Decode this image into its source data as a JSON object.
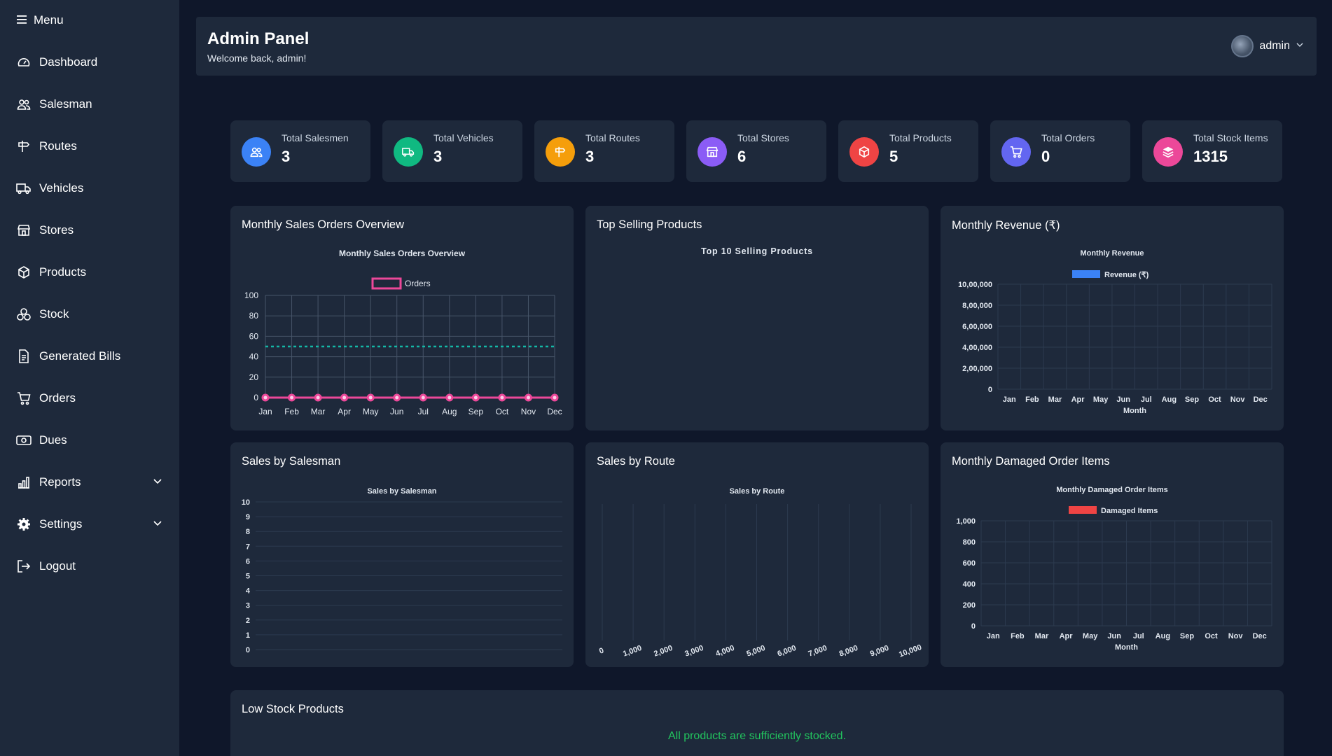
{
  "sidebar": {
    "menu_label": "Menu",
    "items": [
      {
        "label": "Dashboard",
        "icon": "gauge-icon"
      },
      {
        "label": "Salesman",
        "icon": "users-icon"
      },
      {
        "label": "Routes",
        "icon": "signpost-icon"
      },
      {
        "label": "Vehicles",
        "icon": "truck-icon"
      },
      {
        "label": "Stores",
        "icon": "store-icon"
      },
      {
        "label": "Products",
        "icon": "box-icon"
      },
      {
        "label": "Stock",
        "icon": "boxes-icon"
      },
      {
        "label": "Generated Bills",
        "icon": "file-icon"
      },
      {
        "label": "Orders",
        "icon": "cart-icon"
      },
      {
        "label": "Dues",
        "icon": "money-icon"
      },
      {
        "label": "Reports",
        "icon": "chart-icon"
      },
      {
        "label": "Settings",
        "icon": "gear-icon"
      },
      {
        "label": "Logout",
        "icon": "logout-icon"
      }
    ]
  },
  "header": {
    "title": "Admin Panel",
    "subtitle": "Welcome back, admin!",
    "user": "admin"
  },
  "stats": [
    {
      "label": "Total Salesmen",
      "value": "3",
      "color": "#3b82f6",
      "icon": "users-icon"
    },
    {
      "label": "Total Vehicles",
      "value": "3",
      "color": "#10b981",
      "icon": "truck-icon"
    },
    {
      "label": "Total Routes",
      "value": "3",
      "color": "#f59e0b",
      "icon": "signpost-icon"
    },
    {
      "label": "Total Stores",
      "value": "6",
      "color": "#8b5cf6",
      "icon": "store-icon"
    },
    {
      "label": "Total Products",
      "value": "5",
      "color": "#ef4444",
      "icon": "box-icon"
    },
    {
      "label": "Total Orders",
      "value": "0",
      "color": "#6366f1",
      "icon": "cart-icon"
    },
    {
      "label": "Total Stock Items",
      "value": "1315",
      "color": "#ec4899",
      "icon": "layers-icon"
    }
  ],
  "panels": {
    "monthly_orders": "Monthly Sales Orders Overview",
    "top_selling": "Top Selling Products",
    "monthly_revenue": "Monthly Revenue (₹)",
    "sales_by_salesman": "Sales by Salesman",
    "sales_by_route": "Sales by Route",
    "damaged": "Monthly Damaged Order Items",
    "low_stock": "Low Stock Products",
    "low_stock_message": "All products are sufficiently stocked."
  },
  "colors": {
    "orders_line": "#ec4899",
    "target_line": "#14b8a6",
    "revenue": "#3b82f6",
    "damaged": "#ef4444"
  },
  "chart_data": [
    {
      "id": "orders",
      "type": "line",
      "title": "Monthly Sales Orders Overview",
      "legend": [
        "Orders"
      ],
      "categories": [
        "Jan",
        "Feb",
        "Mar",
        "Apr",
        "May",
        "Jun",
        "Jul",
        "Aug",
        "Sep",
        "Oct",
        "Nov",
        "Dec"
      ],
      "series": [
        {
          "name": "Orders",
          "values": [
            0,
            0,
            0,
            0,
            0,
            0,
            0,
            0,
            0,
            0,
            0,
            0
          ]
        }
      ],
      "reference_line": 50,
      "yticks": [
        "0",
        "20",
        "40",
        "60",
        "80",
        "100"
      ],
      "ylim": [
        0,
        100
      ]
    },
    {
      "id": "top",
      "type": "bar",
      "title": "Top 10 Selling Products",
      "categories": [],
      "values": []
    },
    {
      "id": "revenue",
      "type": "bar",
      "title": "Monthly Revenue",
      "legend": [
        "Revenue (₹)"
      ],
      "categories": [
        "Jan",
        "Feb",
        "Mar",
        "Apr",
        "May",
        "Jun",
        "Jul",
        "Aug",
        "Sep",
        "Oct",
        "Nov",
        "Dec"
      ],
      "values": [
        0,
        0,
        0,
        0,
        0,
        0,
        0,
        0,
        0,
        0,
        0,
        0
      ],
      "yticks": [
        "0",
        "2,00,000",
        "4,00,000",
        "6,00,000",
        "8,00,000",
        "10,00,000"
      ],
      "ylim": [
        0,
        1000000
      ],
      "xlabel": "Month"
    },
    {
      "id": "salesman",
      "type": "bar",
      "title": "Sales by Salesman",
      "categories": [],
      "values": [],
      "yticks": [
        "0",
        "1",
        "2",
        "3",
        "4",
        "5",
        "6",
        "7",
        "8",
        "9",
        "10"
      ],
      "ylim": [
        0,
        10
      ]
    },
    {
      "id": "route",
      "type": "bar",
      "title": "Sales by Route",
      "categories": [],
      "values": [],
      "xticks": [
        "0",
        "1,000",
        "2,000",
        "3,000",
        "4,000",
        "5,000",
        "6,000",
        "7,000",
        "8,000",
        "9,000",
        "10,000"
      ],
      "xlim": [
        0,
        10000
      ]
    },
    {
      "id": "damaged",
      "type": "bar",
      "title": "Monthly Damaged Order Items",
      "legend": [
        "Damaged Items"
      ],
      "categories": [
        "Jan",
        "Feb",
        "Mar",
        "Apr",
        "May",
        "Jun",
        "Jul",
        "Aug",
        "Sep",
        "Oct",
        "Nov",
        "Dec"
      ],
      "values": [
        0,
        0,
        0,
        0,
        0,
        0,
        0,
        0,
        0,
        0,
        0,
        0
      ],
      "yticks": [
        "0",
        "200",
        "400",
        "600",
        "800",
        "1,000"
      ],
      "ylim": [
        0,
        1000
      ],
      "xlabel": "Month"
    }
  ]
}
